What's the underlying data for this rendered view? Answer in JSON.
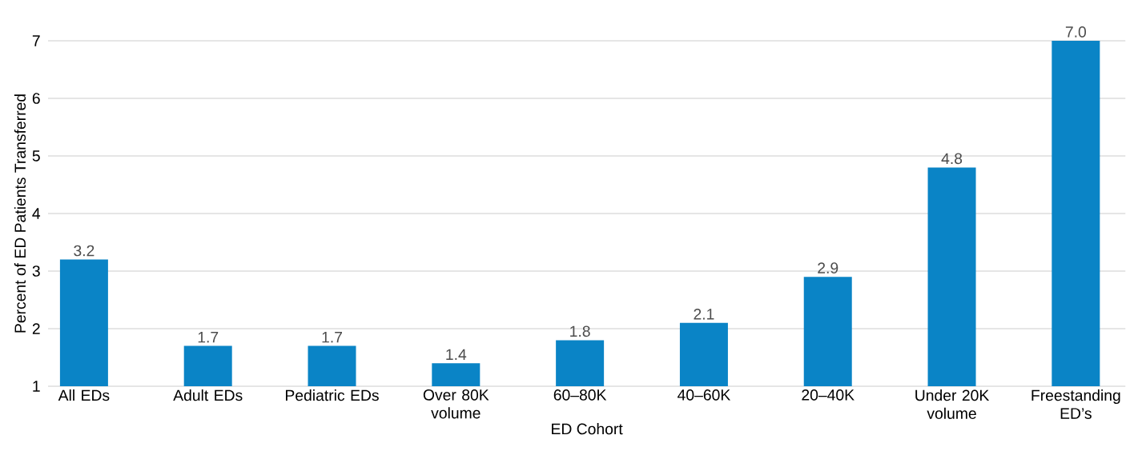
{
  "chart_data": {
    "type": "bar",
    "xlabel": "ED Cohort",
    "ylabel": "Percent of ED Patients Transferred",
    "categories": [
      "All EDs",
      "Adult EDs",
      "Pediatric EDs",
      "Over 80K volume",
      "60–80K",
      "40–60K",
      "20–40K",
      "Under 20K volume",
      "Freestanding ED’s"
    ],
    "values": [
      3.2,
      1.7,
      1.7,
      1.4,
      1.8,
      2.1,
      2.9,
      4.8,
      7.0
    ],
    "value_labels": [
      "3.2",
      "1.7",
      "1.7",
      "1.4",
      "1.8",
      "2.1",
      "2.9",
      "4.8",
      "7.0"
    ],
    "color": "#0a84c6",
    "ylim": [
      1,
      7
    ],
    "yticks": [
      1,
      2,
      3,
      4,
      5,
      6,
      7
    ],
    "grid": "y"
  }
}
